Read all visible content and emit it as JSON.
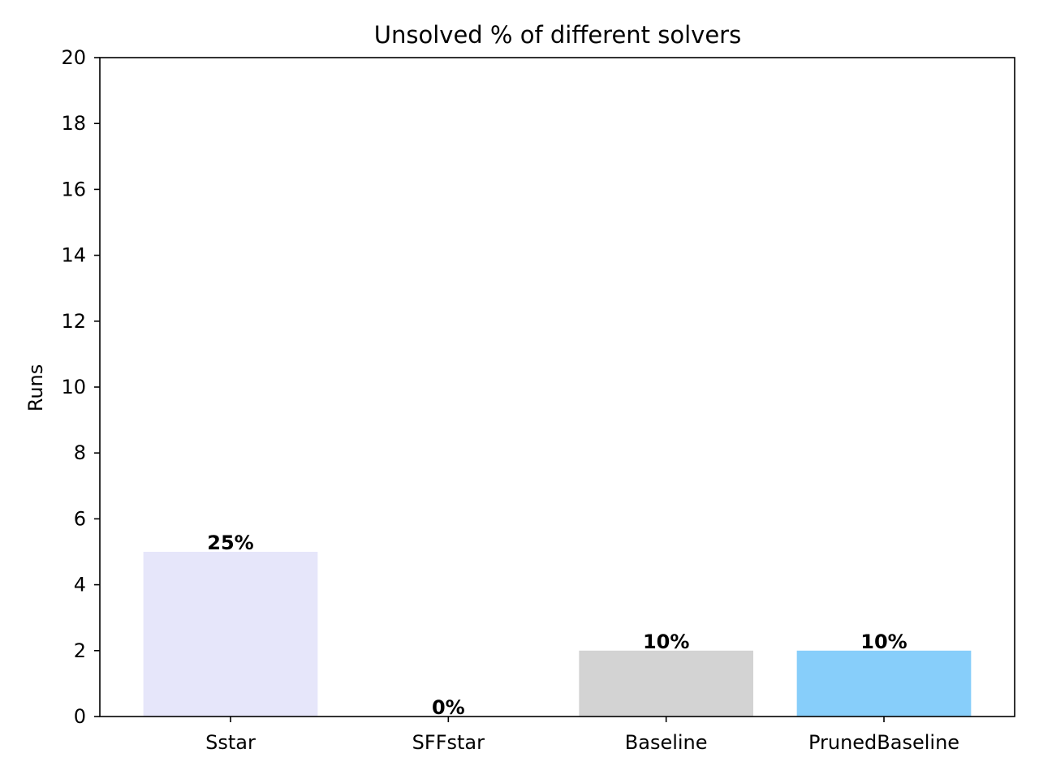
{
  "chart_data": {
    "type": "bar",
    "title": "Unsolved % of different solvers",
    "xlabel": "",
    "ylabel": "Runs",
    "ylim": [
      0,
      20
    ],
    "yticks": [
      0,
      2,
      4,
      6,
      8,
      10,
      12,
      14,
      16,
      18,
      20
    ],
    "categories": [
      "Sstar",
      "SFFstar",
      "Baseline",
      "PrunedBaseline"
    ],
    "values": [
      5,
      0,
      2,
      2
    ],
    "bar_labels": [
      "25%",
      "0%",
      "10%",
      "10%"
    ],
    "colors": [
      "#e6e6fa",
      "#ffffff",
      "#d3d3d3",
      "#87cefa"
    ],
    "grid": false,
    "legend": "none"
  }
}
